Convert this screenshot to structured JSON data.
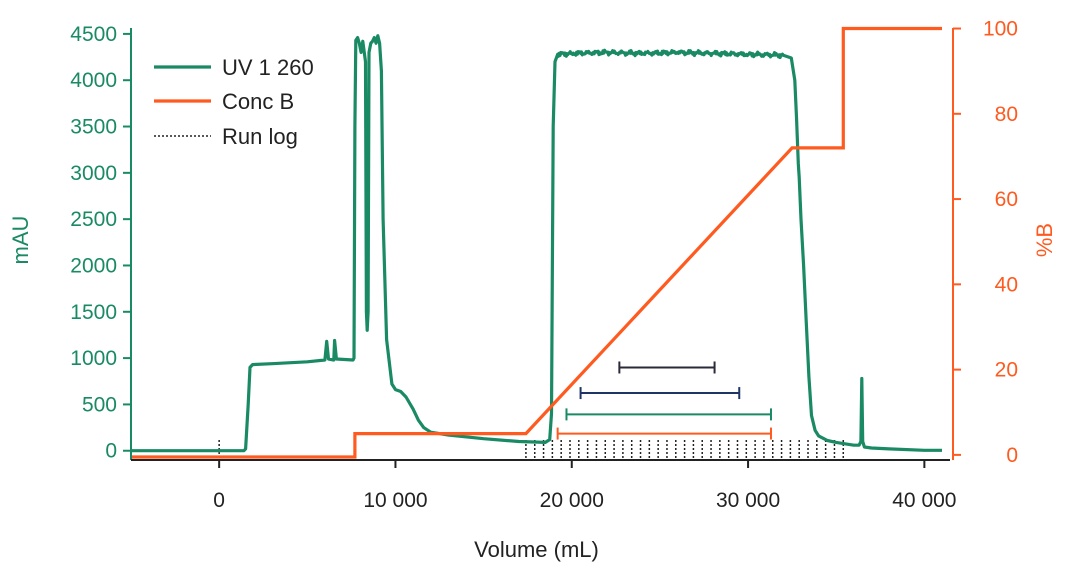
{
  "chart_data": {
    "type": "line",
    "xlabel": "Volume (mL)",
    "ylabel_left": "mAU",
    "ylabel_right": "%B",
    "xlim": [
      -5000,
      41000
    ],
    "ylim_left": [
      -100,
      4650
    ],
    "ylim_right": [
      -1.2,
      102
    ],
    "x_ticks": [
      0,
      10000,
      20000,
      30000,
      40000
    ],
    "x_tick_labels": [
      "0",
      "10 000",
      "20 000",
      "30 000",
      "40 000"
    ],
    "y_left_ticks": [
      0,
      500,
      1000,
      1500,
      2000,
      2500,
      3000,
      3500,
      4000,
      4500
    ],
    "y_left_tick_labels": [
      "0",
      "500",
      "1000",
      "1500",
      "2000",
      "2500",
      "3000",
      "3500",
      "4000",
      "4500"
    ],
    "y_right_ticks": [
      0,
      20,
      40,
      60,
      80,
      100
    ],
    "y_right_tick_labels": [
      "0",
      "20",
      "40",
      "60",
      "80",
      "100"
    ],
    "legend": [
      {
        "label": "UV 1 260",
        "color": "#1a8a64",
        "style": "solid"
      },
      {
        "label": "Conc B",
        "color": "#ff5a1f",
        "style": "solid"
      },
      {
        "label": "Run log",
        "color": "#222222",
        "style": "dotted"
      }
    ],
    "legend_position": "top-left",
    "series": [
      {
        "name": "UV 1 260",
        "axis": "left",
        "color": "#1a8a64",
        "noise_range": [
          19100,
          32400
        ],
        "noise_amp": 25,
        "points": [
          [
            -5000,
            0
          ],
          [
            1400,
            0
          ],
          [
            1500,
            20
          ],
          [
            1650,
            500
          ],
          [
            1750,
            900
          ],
          [
            1900,
            930
          ],
          [
            3000,
            940
          ],
          [
            5000,
            960
          ],
          [
            6000,
            980
          ],
          [
            6100,
            1180
          ],
          [
            6200,
            990
          ],
          [
            6500,
            980
          ],
          [
            6550,
            1190
          ],
          [
            6650,
            990
          ],
          [
            7600,
            980
          ],
          [
            7650,
            1000
          ],
          [
            7700,
            3500
          ],
          [
            7750,
            4430
          ],
          [
            7850,
            4460
          ],
          [
            7950,
            4400
          ],
          [
            8050,
            4300
          ],
          [
            8150,
            4420
          ],
          [
            8300,
            4200
          ],
          [
            8350,
            1500
          ],
          [
            8400,
            1300
          ],
          [
            8450,
            1500
          ],
          [
            8500,
            4300
          ],
          [
            8600,
            4400
          ],
          [
            8700,
            4420
          ],
          [
            8800,
            4460
          ],
          [
            8900,
            4400
          ],
          [
            9000,
            4480
          ],
          [
            9100,
            4400
          ],
          [
            9200,
            4100
          ],
          [
            9300,
            2500
          ],
          [
            9500,
            1200
          ],
          [
            9800,
            720
          ],
          [
            10000,
            660
          ],
          [
            10300,
            640
          ],
          [
            10600,
            580
          ],
          [
            11000,
            450
          ],
          [
            11300,
            330
          ],
          [
            11600,
            250
          ],
          [
            12000,
            200
          ],
          [
            13000,
            170
          ],
          [
            15000,
            130
          ],
          [
            17000,
            100
          ],
          [
            18500,
            90
          ],
          [
            18750,
            120
          ],
          [
            18850,
            400
          ],
          [
            18950,
            3500
          ],
          [
            19050,
            4200
          ],
          [
            19200,
            4280
          ],
          [
            20000,
            4290
          ],
          [
            22000,
            4300
          ],
          [
            24000,
            4290
          ],
          [
            26000,
            4300
          ],
          [
            28000,
            4290
          ],
          [
            30000,
            4280
          ],
          [
            32000,
            4270
          ],
          [
            32450,
            4240
          ],
          [
            32650,
            4000
          ],
          [
            32750,
            3600
          ],
          [
            32850,
            3100
          ],
          [
            32900,
            2950
          ],
          [
            33000,
            2500
          ],
          [
            33150,
            2000
          ],
          [
            33300,
            1400
          ],
          [
            33450,
            800
          ],
          [
            33600,
            380
          ],
          [
            33800,
            220
          ],
          [
            34000,
            160
          ],
          [
            34500,
            110
          ],
          [
            35000,
            90
          ],
          [
            36000,
            60
          ],
          [
            36300,
            60
          ],
          [
            36400,
            100
          ],
          [
            36450,
            780
          ],
          [
            36500,
            100
          ],
          [
            36600,
            40
          ],
          [
            37000,
            30
          ],
          [
            38000,
            20
          ],
          [
            40000,
            5
          ],
          [
            41000,
            5
          ]
        ]
      },
      {
        "name": "Conc B",
        "axis": "right",
        "color": "#ff5a1f",
        "points": [
          [
            -5000,
            -0.5
          ],
          [
            7700,
            -0.5
          ],
          [
            7700,
            5
          ],
          [
            17400,
            5
          ],
          [
            32500,
            72
          ],
          [
            35400,
            72
          ],
          [
            35400,
            100
          ],
          [
            41000,
            100
          ]
        ]
      }
    ],
    "run_log_marks": [
      0,
      17400,
      17900,
      18400,
      18900,
      19400,
      19900,
      20400,
      20900,
      21400,
      21900,
      22400,
      22900,
      23400,
      23900,
      24400,
      24900,
      25400,
      25900,
      26400,
      26900,
      27400,
      27900,
      28400,
      28900,
      29400,
      29900,
      30400,
      30900,
      31400,
      31900,
      32400,
      32900,
      33400,
      33900,
      34400,
      34900,
      35400
    ],
    "fraction_bars": [
      {
        "x0": 22700,
        "x1": 28100,
        "y": 20.5,
        "color": "#2a2a3a"
      },
      {
        "x0": 20500,
        "x1": 29500,
        "y": 14.5,
        "color": "#1f3566"
      },
      {
        "x0": 19700,
        "x1": 31300,
        "y": 9.5,
        "color": "#1a8a64"
      },
      {
        "x0": 19200,
        "x1": 31300,
        "y": 5,
        "color": "#ff5a1f"
      }
    ]
  }
}
